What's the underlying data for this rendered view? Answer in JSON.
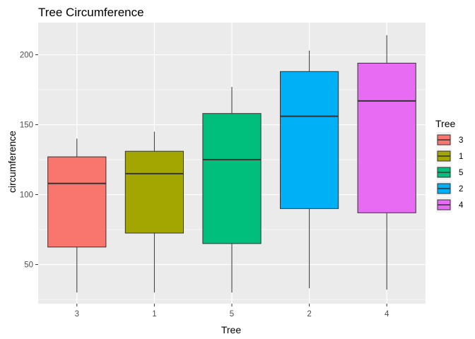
{
  "chart_data": {
    "type": "boxplot",
    "title": "Tree Circumference",
    "xlabel": "Tree",
    "ylabel": "circumference",
    "ylim": [
      22,
      223
    ],
    "yticks": [
      50,
      100,
      150,
      200
    ],
    "grid": true,
    "legend": {
      "title": "Tree",
      "placement": "right"
    },
    "categories": [
      "3",
      "1",
      "5",
      "2",
      "4"
    ],
    "boxes": [
      {
        "name": "3",
        "color": "#F8766D",
        "min": 30,
        "q1": 62.5,
        "median": 108,
        "q3": 127,
        "max": 140
      },
      {
        "name": "1",
        "color": "#A3A500",
        "min": 30,
        "q1": 72.5,
        "median": 115,
        "q3": 131,
        "max": 145
      },
      {
        "name": "5",
        "color": "#00BF7D",
        "min": 30,
        "q1": 65,
        "median": 125,
        "q3": 158,
        "max": 177
      },
      {
        "name": "2",
        "color": "#00B0F6",
        "min": 33,
        "q1": 90,
        "median": 156,
        "q3": 188,
        "max": 203
      },
      {
        "name": "4",
        "color": "#E76BF3",
        "min": 32,
        "q1": 87,
        "median": 167,
        "q3": 194,
        "max": 214
      }
    ]
  }
}
